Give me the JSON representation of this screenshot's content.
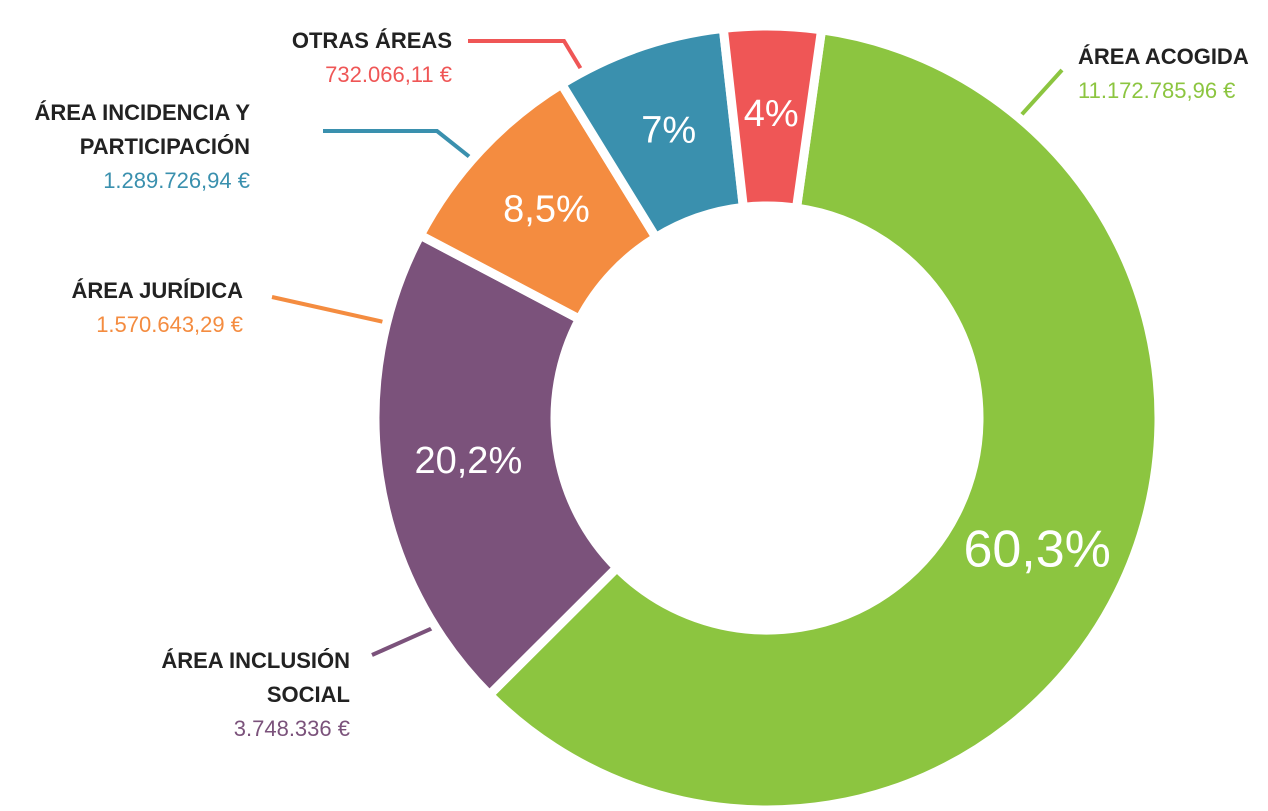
{
  "chart_data": {
    "type": "pie",
    "categories": [
      "ÁREA ACOGIDA",
      "ÁREA INCLUSIÓN SOCIAL",
      "ÁREA JURÍDICA",
      "ÁREA INCIDENCIA Y PARTICIPACIÓN",
      "OTRAS ÁREAS"
    ],
    "values": [
      60.3,
      20.2,
      8.5,
      7,
      4
    ],
    "value_labels": [
      "60,3%",
      "20,2%",
      "8,5%",
      "7%",
      "4%"
    ],
    "amount_labels": [
      "11.172.785,96 €",
      "3.748.336 €",
      "1.570.643,29 €",
      "1.289.726,94 €",
      "732.066,11 €"
    ],
    "colors": [
      "#8cc540",
      "#7b527b",
      "#f48c40",
      "#3a90ae",
      "#ef5656"
    ]
  }
}
